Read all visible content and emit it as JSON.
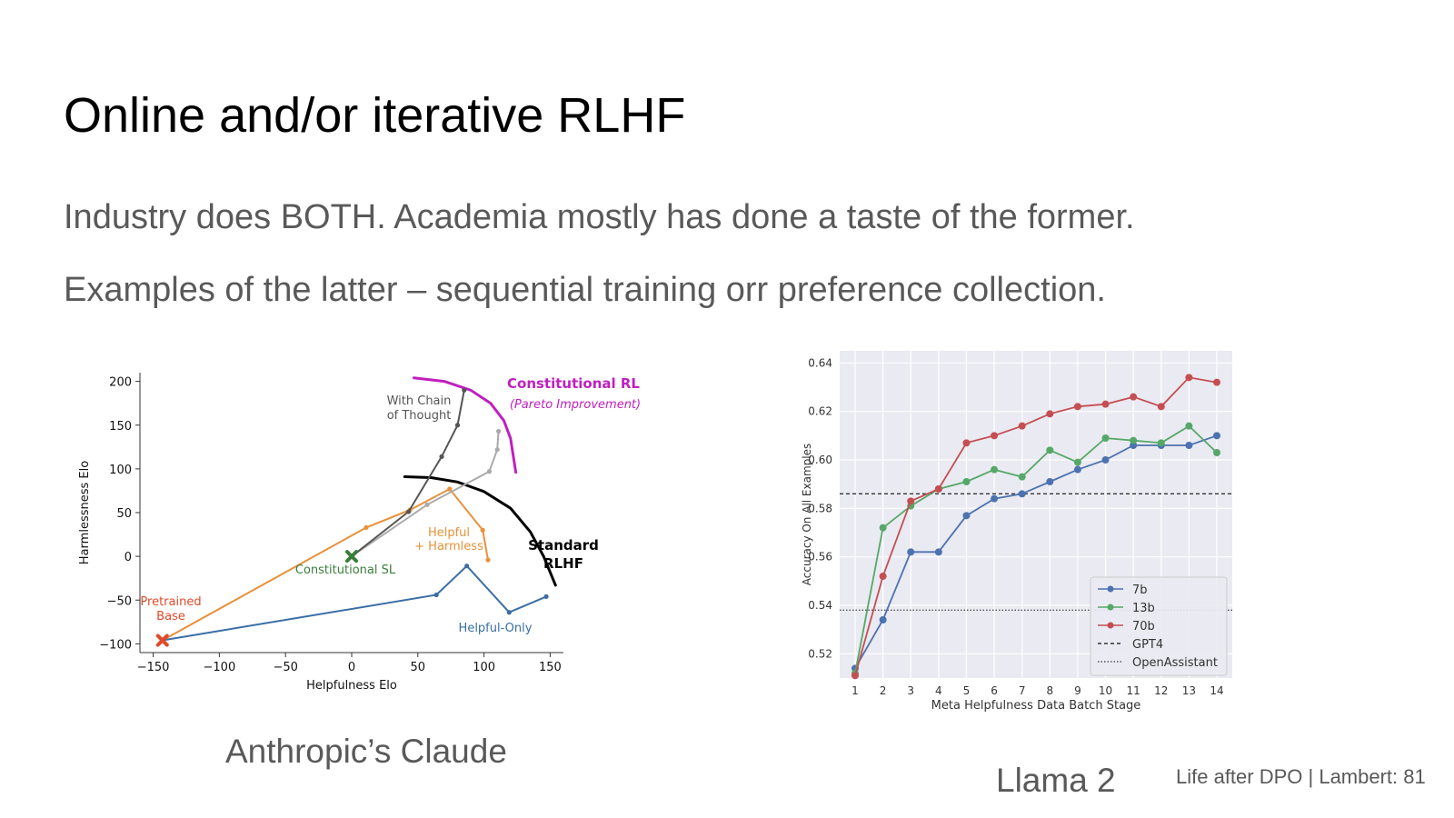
{
  "slide": {
    "title": "Online and/or iterative RLHF",
    "bullets": [
      "Industry does BOTH. Academia mostly has done a taste of the former.",
      "Examples of the latter – sequential training orr preference collection."
    ],
    "caption_left": "Anthropic’s Claude",
    "caption_right": "Llama 2",
    "footer": "Life after DPO | Lambert: 81"
  },
  "chart_data": [
    {
      "type": "line",
      "xlabel": "Helpfulness Elo",
      "ylabel": "Harmlessness Elo",
      "xlim": [
        -160,
        160
      ],
      "ylim": [
        -110,
        210
      ],
      "xticks": [
        -150,
        -100,
        -50,
        0,
        50,
        100,
        150
      ],
      "yticks": [
        -100,
        -50,
        0,
        50,
        100,
        150,
        200
      ],
      "grid": false,
      "series": [
        {
          "name": "Helpful-Only",
          "color": "#3a6ea5",
          "x": [
            -143,
            64,
            87,
            119,
            147
          ],
          "y": [
            -96,
            -44,
            -11,
            -64,
            -46
          ]
        },
        {
          "name": "Helpful + Harmless",
          "color": "#e8913a",
          "x": [
            -143,
            11,
            44,
            74,
            99,
            103
          ],
          "y": [
            -96,
            33,
            53,
            77,
            30,
            -4
          ]
        },
        {
          "name": "Constitutional RL",
          "color": "#aaaaaa",
          "x": [
            0,
            57,
            104,
            110,
            111
          ],
          "y": [
            0,
            59,
            97,
            122,
            143
          ]
        },
        {
          "name": "With Chain of Thought",
          "color": "#555555",
          "x": [
            0,
            43,
            68,
            80,
            85
          ],
          "y": [
            0,
            51,
            114,
            150,
            190
          ]
        }
      ],
      "markers": [
        {
          "label": "Pretrained\nBase",
          "x": -143,
          "y": -96,
          "color": "#e04a2a"
        },
        {
          "label": "Constitutional SL",
          "x": 0,
          "y": 0,
          "color": "#3a7d3a"
        }
      ],
      "annotations": [
        {
          "text": "Constitutional RL",
          "color": "#c020c0"
        },
        {
          "text": "(Pareto Improvement)",
          "color": "#c020c0"
        },
        {
          "text": "Standard",
          "color": "#000000"
        },
        {
          "text": "RLHF",
          "color": "#000000"
        },
        {
          "text": "With Chain",
          "color": "#555555"
        },
        {
          "text": "of Thought",
          "color": "#555555"
        },
        {
          "text": "Helpful",
          "color": "#e8913a"
        },
        {
          "text": "+ Harmless",
          "color": "#e8913a"
        },
        {
          "text": "Helpful-Only",
          "color": "#3a6ea5"
        }
      ],
      "frontiers": [
        {
          "name": "standard",
          "color": "#000000",
          "x": [
            40,
            60,
            80,
            100,
            120,
            135,
            145,
            154
          ],
          "y": [
            91,
            90,
            85,
            74,
            55,
            28,
            0,
            -33
          ]
        },
        {
          "name": "constitutional",
          "color": "#c020c0",
          "x": [
            47,
            70,
            90,
            105,
            115,
            120,
            124
          ],
          "y": [
            204,
            200,
            190,
            175,
            155,
            135,
            96
          ]
        }
      ]
    },
    {
      "type": "line",
      "xlabel": "Meta Helpfulness Data Batch Stage",
      "ylabel": "Accuracy On All Examples",
      "categories": [
        1,
        2,
        3,
        4,
        5,
        6,
        7,
        8,
        9,
        10,
        11,
        12,
        13,
        14
      ],
      "ylim": [
        0.51,
        0.645
      ],
      "yticks": [
        0.52,
        0.54,
        0.56,
        0.58,
        0.6,
        0.62,
        0.64
      ],
      "grid": true,
      "legend": "lower-right",
      "series": [
        {
          "name": "7b",
          "color": "#4c72b0",
          "values": [
            0.514,
            0.534,
            0.562,
            0.562,
            0.577,
            0.584,
            0.586,
            0.591,
            0.596,
            0.6,
            0.606,
            0.606,
            0.606,
            0.61
          ]
        },
        {
          "name": "13b",
          "color": "#55a868",
          "values": [
            0.512,
            0.572,
            0.581,
            0.588,
            0.591,
            0.596,
            0.593,
            0.604,
            0.599,
            0.609,
            0.608,
            0.607,
            0.614,
            0.603
          ]
        },
        {
          "name": "70b",
          "color": "#c44e52",
          "values": [
            0.511,
            0.552,
            0.583,
            0.588,
            0.607,
            0.61,
            0.614,
            0.619,
            0.622,
            0.623,
            0.626,
            0.622,
            0.634,
            0.632
          ]
        }
      ],
      "reference_lines": [
        {
          "name": "GPT4",
          "value": 0.586,
          "style": "dashed",
          "color": "#333333"
        },
        {
          "name": "OpenAssistant",
          "value": 0.538,
          "style": "dotted",
          "color": "#555555"
        }
      ]
    }
  ]
}
